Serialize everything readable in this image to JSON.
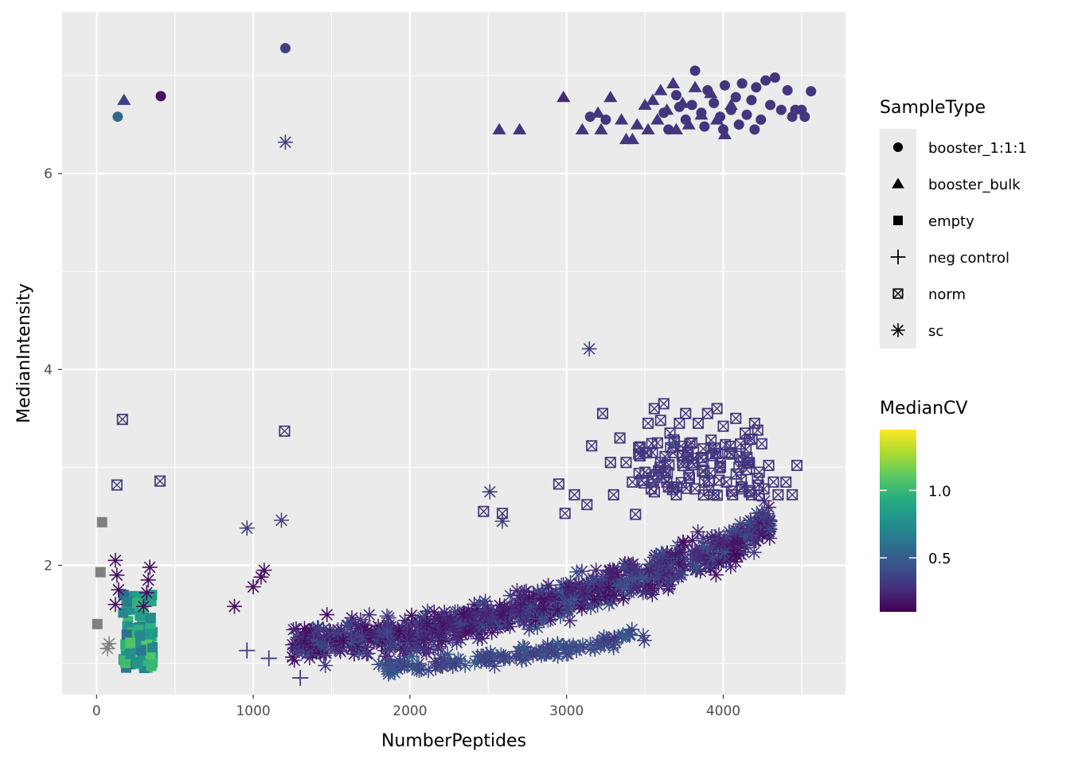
{
  "chart_data": {
    "type": "scatter",
    "xlabel": "NumberPeptides",
    "ylabel": "MedianIntensity",
    "xlim": [
      -220,
      4780
    ],
    "ylim": [
      0.68,
      7.65
    ],
    "xticks": [
      0,
      1000,
      2000,
      3000,
      4000
    ],
    "xtick_labels": [
      "0",
      "1000",
      "2000",
      "3000",
      "4000"
    ],
    "yticks": [
      2,
      4,
      6
    ],
    "ytick_labels": [
      "2",
      "4",
      "6"
    ],
    "grid": true,
    "panel_background": "#ebebeb",
    "legend_placement": "right",
    "shape_legend": {
      "title": "SampleType",
      "entries": [
        {
          "label": "booster_1:1:1",
          "shape": "circle"
        },
        {
          "label": "booster_bulk",
          "shape": "triangle"
        },
        {
          "label": "empty",
          "shape": "square"
        },
        {
          "label": "neg control",
          "shape": "plus"
        },
        {
          "label": "norm",
          "shape": "boxed-x"
        },
        {
          "label": "sc",
          "shape": "asterisk"
        }
      ]
    },
    "color_legend": {
      "title": "MedianCV",
      "ticks": [
        0.5,
        1.0
      ],
      "tick_labels": [
        "0.5",
        "1.0"
      ],
      "range": [
        0.1,
        1.45
      ],
      "colormap": "viridis",
      "na_color": "#808080"
    },
    "series": [
      {
        "name": "booster_1:1:1",
        "shape": "circle",
        "points": [
          [
            135,
            6.58,
            0.55
          ],
          [
            410,
            6.79,
            0.15
          ],
          [
            1205,
            7.28,
            0.35
          ],
          [
            3150,
            6.58,
            0.3
          ],
          [
            3250,
            6.55,
            0.3
          ],
          [
            3620,
            6.62,
            0.3
          ],
          [
            3700,
            6.8,
            0.3
          ],
          [
            3760,
            6.55,
            0.3
          ],
          [
            3800,
            6.7,
            0.3
          ],
          [
            3820,
            7.05,
            0.3
          ],
          [
            3860,
            6.62,
            0.3
          ],
          [
            3900,
            6.85,
            0.3
          ],
          [
            3940,
            6.72,
            0.3
          ],
          [
            3980,
            6.58,
            0.3
          ],
          [
            4010,
            6.9,
            0.3
          ],
          [
            4050,
            6.65,
            0.3
          ],
          [
            4080,
            6.78,
            0.3
          ],
          [
            4120,
            6.92,
            0.3
          ],
          [
            4150,
            6.6,
            0.3
          ],
          [
            4180,
            6.75,
            0.3
          ],
          [
            4210,
            6.88,
            0.3
          ],
          [
            4240,
            6.55,
            0.3
          ],
          [
            4270,
            6.95,
            0.3
          ],
          [
            4300,
            6.7,
            0.3
          ],
          [
            4330,
            6.98,
            0.3
          ],
          [
            4370,
            6.65,
            0.3
          ],
          [
            4410,
            6.85,
            0.3
          ],
          [
            4440,
            6.58,
            0.3
          ],
          [
            4460,
            6.65,
            0.3
          ],
          [
            4500,
            6.65,
            0.3
          ],
          [
            4520,
            6.58,
            0.3
          ],
          [
            4560,
            6.84,
            0.3
          ],
          [
            3650,
            6.45,
            0.3
          ],
          [
            3720,
            6.68,
            0.3
          ],
          [
            3880,
            6.48,
            0.3
          ],
          [
            4000,
            6.45,
            0.3
          ],
          [
            4100,
            6.5,
            0.3
          ],
          [
            4200,
            6.45,
            0.3
          ]
        ]
      },
      {
        "name": "booster_bulk",
        "shape": "triangle",
        "points": [
          [
            175,
            6.75,
            0.35
          ],
          [
            2570,
            6.45,
            0.3
          ],
          [
            2700,
            6.45,
            0.3
          ],
          [
            2980,
            6.78,
            0.25
          ],
          [
            3100,
            6.45,
            0.3
          ],
          [
            3200,
            6.62,
            0.3
          ],
          [
            3220,
            6.45,
            0.3
          ],
          [
            3280,
            6.78,
            0.3
          ],
          [
            3350,
            6.55,
            0.3
          ],
          [
            3380,
            6.35,
            0.3
          ],
          [
            3420,
            6.35,
            0.3
          ],
          [
            3450,
            6.5,
            0.3
          ],
          [
            3500,
            6.7,
            0.3
          ],
          [
            3520,
            6.45,
            0.3
          ],
          [
            3550,
            6.75,
            0.3
          ],
          [
            3580,
            6.55,
            0.3
          ],
          [
            3600,
            6.85,
            0.3
          ],
          [
            3640,
            6.65,
            0.3
          ],
          [
            3680,
            6.92,
            0.3
          ],
          [
            3700,
            6.45,
            0.3
          ],
          [
            3740,
            6.72,
            0.3
          ],
          [
            3780,
            6.5,
            0.3
          ],
          [
            3820,
            6.88,
            0.3
          ],
          [
            3860,
            6.6,
            0.3
          ],
          [
            3920,
            6.82,
            0.3
          ],
          [
            3960,
            6.55,
            0.3
          ],
          [
            4010,
            6.4,
            0.3
          ],
          [
            4050,
            6.7,
            0.3
          ]
        ]
      },
      {
        "name": "empty",
        "shape": "square",
        "points": [
          [
            35,
            2.44,
            null
          ],
          [
            25,
            1.93,
            null
          ],
          [
            5,
            1.4,
            null
          ]
        ]
      },
      {
        "name": "neg control",
        "shape": "plus",
        "points": [
          [
            960,
            1.13,
            0.35
          ],
          [
            1100,
            1.05,
            0.35
          ],
          [
            1300,
            0.85,
            0.35
          ],
          [
            1450,
            1.08,
            0.35
          ]
        ]
      },
      {
        "name": "norm",
        "shape": "boxed-x",
        "points": [
          [
            165,
            3.49,
            0.3
          ],
          [
            130,
            2.82,
            0.35
          ],
          [
            405,
            2.86,
            0.3
          ],
          [
            1200,
            3.37,
            0.3
          ],
          [
            2470,
            2.55,
            0.3
          ],
          [
            2590,
            2.53,
            0.3
          ],
          [
            2950,
            2.83,
            0.3
          ],
          [
            2990,
            2.53,
            0.3
          ],
          [
            3050,
            2.72,
            0.3
          ],
          [
            3130,
            2.62,
            0.3
          ],
          [
            3160,
            3.22,
            0.3
          ],
          [
            3230,
            3.55,
            0.3
          ],
          [
            3280,
            3.05,
            0.3
          ],
          [
            3300,
            2.72,
            0.3
          ],
          [
            3340,
            3.3,
            0.3
          ],
          [
            3380,
            3.05,
            0.3
          ],
          [
            3420,
            2.85,
            0.3
          ],
          [
            3440,
            2.52,
            0.3
          ],
          [
            3460,
            3.2,
            0.3
          ],
          [
            3500,
            2.95,
            0.3
          ],
          [
            3520,
            3.45,
            0.3
          ],
          [
            3540,
            2.78,
            0.3
          ],
          [
            3560,
            3.6,
            0.3
          ],
          [
            3580,
            3.25,
            0.3
          ],
          [
            3600,
            3.05,
            0.3
          ],
          [
            3620,
            3.65,
            0.3
          ],
          [
            3640,
            2.85,
            0.3
          ],
          [
            3660,
            3.35,
            0.3
          ],
          [
            3680,
            3.15,
            0.3
          ],
          [
            3700,
            2.72,
            0.3
          ],
          [
            3720,
            3.45,
            0.3
          ],
          [
            3740,
            3.05,
            0.3
          ],
          [
            3760,
            3.55,
            0.3
          ],
          [
            3780,
            2.92,
            0.3
          ],
          [
            3800,
            3.25,
            0.3
          ],
          [
            3820,
            2.78,
            0.3
          ],
          [
            3840,
            3.45,
            0.3
          ],
          [
            3860,
            3.1,
            0.3
          ],
          [
            3880,
            2.85,
            0.3
          ],
          [
            3900,
            3.55,
            0.3
          ],
          [
            3920,
            3.2,
            0.3
          ],
          [
            3940,
            2.72,
            0.3
          ],
          [
            3960,
            3.6,
            0.3
          ],
          [
            3980,
            3.05,
            0.3
          ],
          [
            4000,
            3.42,
            0.3
          ],
          [
            4020,
            2.85,
            0.3
          ],
          [
            4040,
            3.15,
            0.3
          ],
          [
            4060,
            2.72,
            0.3
          ],
          [
            4080,
            3.5,
            0.3
          ],
          [
            4100,
            3.0,
            0.3
          ],
          [
            4120,
            2.8,
            0.3
          ],
          [
            4140,
            3.35,
            0.3
          ],
          [
            4160,
            3.05,
            0.3
          ],
          [
            4180,
            2.72,
            0.3
          ],
          [
            4200,
            3.45,
            0.3
          ],
          [
            4230,
            2.95,
            0.3
          ],
          [
            4260,
            2.78,
            0.3
          ],
          [
            4290,
            3.02,
            0.3
          ],
          [
            4320,
            2.85,
            0.3
          ],
          [
            4350,
            2.72,
            0.3
          ],
          [
            4400,
            2.85,
            0.3
          ],
          [
            4440,
            2.72,
            0.3
          ],
          [
            4470,
            3.02,
            0.3
          ],
          [
            4220,
            3.38,
            0.3
          ],
          [
            3560,
            2.75,
            0.3
          ],
          [
            3600,
            3.48,
            0.3
          ]
        ]
      },
      {
        "name": "sc",
        "shape": "asterisk",
        "points": [
          [
            1205,
            6.32,
            0.35
          ],
          [
            3145,
            4.21,
            0.35
          ],
          [
            960,
            2.38,
            0.35
          ],
          [
            1180,
            2.46,
            0.35
          ],
          [
            2510,
            2.75,
            0.35
          ],
          [
            2590,
            2.45,
            0.35
          ],
          [
            70,
            1.15,
            null
          ],
          [
            80,
            1.2,
            null
          ],
          [
            120,
            2.05,
            0.15
          ],
          [
            130,
            1.9,
            0.15
          ],
          [
            140,
            1.75,
            0.15
          ],
          [
            120,
            1.6,
            0.15
          ],
          [
            340,
            1.98,
            0.15
          ],
          [
            330,
            1.85,
            0.15
          ],
          [
            320,
            1.72,
            0.15
          ],
          [
            300,
            1.58,
            0.15
          ],
          [
            880,
            1.58,
            0.15
          ],
          [
            1000,
            1.78,
            0.15
          ],
          [
            1050,
            1.88,
            0.15
          ],
          [
            1070,
            1.95,
            0.15
          ]
        ]
      }
    ],
    "dense_clusters": [
      {
        "series": "sc",
        "count": 900,
        "seed": 11,
        "x_range": [
          1250,
          4300
        ],
        "model": "curve",
        "curve": [
          [
            1250,
            1.2
          ],
          [
            2000,
            1.3
          ],
          [
            2500,
            1.45
          ],
          [
            3000,
            1.65
          ],
          [
            3500,
            1.9
          ],
          [
            4000,
            2.15
          ],
          [
            4300,
            2.45
          ]
        ],
        "spread": 0.28,
        "cv_range": [
          0.12,
          0.45
        ]
      },
      {
        "series": "sc",
        "count": 140,
        "seed": 23,
        "x_range": [
          1800,
          3500
        ],
        "model": "curve",
        "curve": [
          [
            1800,
            0.95
          ],
          [
            2500,
            1.05
          ],
          [
            3000,
            1.15
          ],
          [
            3500,
            1.3
          ]
        ],
        "spread": 0.12,
        "cv_range": [
          0.3,
          0.5
        ]
      },
      {
        "series": "empty",
        "count": 90,
        "seed": 31,
        "x_range": [
          170,
          360
        ],
        "model": "box",
        "y_range": [
          0.92,
          1.7
        ],
        "cv_range": [
          0.55,
          1.1
        ]
      },
      {
        "series": "norm",
        "count": 80,
        "seed": 47,
        "x_range": [
          3450,
          4250
        ],
        "model": "box",
        "y_range": [
          2.7,
          3.3
        ],
        "cv_range": [
          0.28,
          0.36
        ]
      }
    ]
  }
}
